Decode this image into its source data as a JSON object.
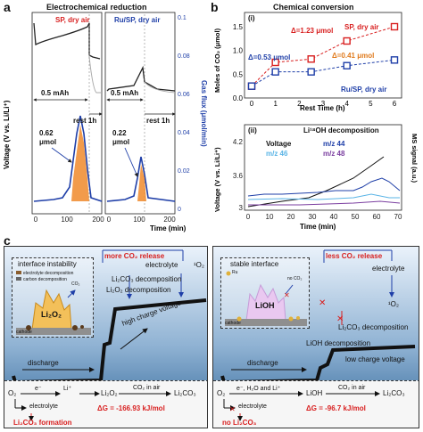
{
  "panel_a": {
    "label": "a",
    "title": "Electrochemical reduction",
    "sp_label": "SP, dry air",
    "ru_label": "Ru/SP, dry air",
    "capacity_sp": "0.5 mAh",
    "capacity_ru": "0.5 mAh",
    "rest_sp": "rest 1h",
    "rest_ru": "rest 1h",
    "gas_sp": "0.62\nμmol",
    "gas_sp_1": "0.62",
    "gas_sp_2": "μmol",
    "gas_ru_1": "0.22",
    "gas_ru_2": "μmol",
    "ylabel_left": "Voltage (V vs. Li/Li⁺)",
    "ylabel_right": "Gas flux (μmol/min)",
    "xlabel": "Time (min)",
    "right_ticks": [
      "0.1",
      "0.08",
      "0.06",
      "0.04",
      "0.02",
      "0"
    ],
    "x_ticks_sp": [
      "0",
      "100",
      "200"
    ],
    "x_ticks_ru": [
      "0",
      "100",
      "200"
    ]
  },
  "panel_b": {
    "label": "b",
    "title": "Chemical conversion",
    "sub_i": "(i)",
    "sub_ii": "(ii)",
    "chart_i": {
      "type": "scatter",
      "xlabel": "Rest Time (h)",
      "ylabel": "Moles of CO₂ (μmol)",
      "x_ticks": [
        "0",
        "1",
        "2",
        "3",
        "4",
        "5",
        "6"
      ],
      "y_ticks": [
        "0.0",
        "0.5",
        "1.0",
        "1.5"
      ],
      "series": [
        {
          "name": "SP, dry air",
          "x": [
            0,
            1,
            2.5,
            4,
            6
          ],
          "y": [
            0.25,
            0.75,
            0.82,
            1.2,
            1.5
          ],
          "color": "#d81f1f"
        },
        {
          "name": "Ru/SP, dry air",
          "x": [
            0,
            1,
            2.5,
            4,
            6
          ],
          "y": [
            0.25,
            0.55,
            0.55,
            0.68,
            0.8
          ],
          "color": "#1f3fa8"
        }
      ],
      "annot_sp": "Δ=1.23 μmol",
      "annot_mid": "Δ=0.53 μmol",
      "annot_ru": "Δ=0.41 μmol"
    },
    "chart_ii": {
      "title": "Li¹⁸OH decomposition",
      "xlabel": "Time (min)",
      "ylabel_left": "Voltage (V vs. Li/Li⁺)",
      "ylabel_right": "MS signal (a.u.)",
      "x_ticks": [
        "0",
        "10",
        "20",
        "30",
        "40",
        "50",
        "60",
        "70"
      ],
      "y_ticks": [
        "3",
        "3.6",
        "4.2"
      ],
      "legend": [
        "Voltage",
        "m/z 44",
        "m/z 46",
        "m/z 48"
      ],
      "legend_colors": [
        "#111111",
        "#1f3fa8",
        "#5ab4e6",
        "#7b3fa0"
      ]
    }
  },
  "panel_c": {
    "label": "c",
    "left": {
      "release": "more CO₂ release",
      "electrolyte_top": "electrolyte",
      "o2_top": "¹O₂",
      "li2co3_decomp": "Li₂CO₃ decomposition",
      "li2o2_decomp": "Li₂O₂ decomposition",
      "high_voltage": "high charge voltage",
      "discharge": "discharge",
      "inset_title": "interface instability",
      "legend_1": "electrolyte decomposition",
      "legend_2": "carbon decomposition",
      "co2_release": "CO₂\nrelease",
      "crystal": "Li₂O₂",
      "cathode": "cathode",
      "rx_o2": "O₂",
      "rx_e": "e⁻",
      "rx_li": "Li⁺",
      "rx_li2o2": "Li₂O₂",
      "rx_co2air": "CO₂ in air",
      "rx_li2co3": "Li₂CO₃",
      "rx_electrolyte": "electrolyte",
      "rx_dg": "ΔG = -166.93 kJ/mol",
      "rx_formation": "Li₂CO₃ formation"
    },
    "right": {
      "release": "less CO₂ release",
      "electrolyte_top": "electrolyte",
      "o2_top": "¹O₂",
      "li2co3_decomp": "Li₂CO₃ decomposition",
      "lioh_decomp": "LiOH decomposition",
      "low_voltage": "low charge voltage",
      "discharge": "discharge",
      "inset_title": "stable interface",
      "ru": "Ru",
      "no_co2": "no CO₂",
      "crystal": "LiOH",
      "cathode": "cathode",
      "rx_o2": "O₂",
      "rx_e": "e⁻, H₂O and Li⁺",
      "rx_lioh": "LiOH",
      "rx_co2air": "CO₂ in air",
      "rx_li2co3": "Li₂CO₃",
      "rx_electrolyte": "electrolyte",
      "rx_dg": "ΔG = -96.7 kJ/mol",
      "rx_no": "no Li₂CO₃"
    }
  }
}
